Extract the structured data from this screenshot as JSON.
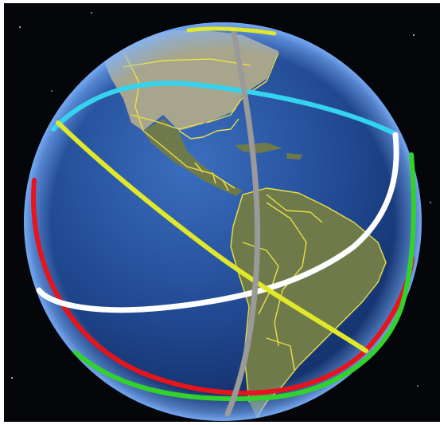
{
  "colors": {
    "space": "#05060a",
    "ocean_light": "#3b6fc0",
    "ocean_mid": "#20478f",
    "ocean_deep": "#0c2454",
    "land": "#6f7a4a",
    "land_north": "#a7a58c",
    "border": "#e9e04a",
    "atmosphere": "#7fb4ff",
    "orbit_cyan": "#34d4f0",
    "orbit_white": "#ffffff",
    "orbit_yellow": "#dfe82a",
    "orbit_gray": "#9a9a9a",
    "orbit_red": "#e8141c",
    "orbit_green": "#33d12c"
  },
  "layers": [
    "globe",
    "borders",
    "orbit-cyan",
    "orbit-white",
    "orbit-yellow",
    "orbit-gray",
    "orbit-red",
    "orbit-green"
  ]
}
